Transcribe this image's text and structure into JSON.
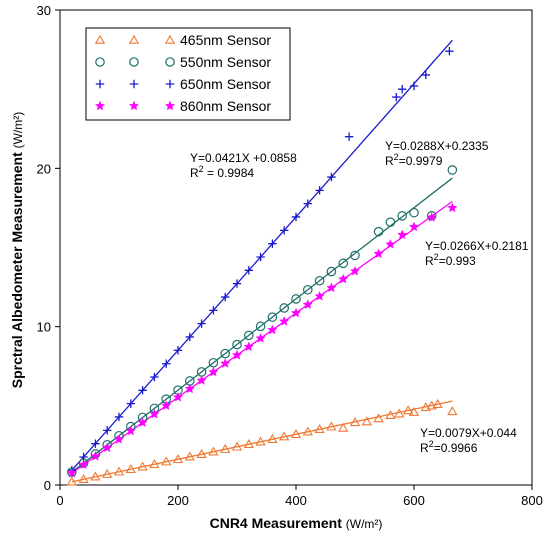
{
  "chart_data": {
    "type": "scatter",
    "title": "",
    "xlabel": "CNR4 Measurement",
    "xlabel_unit": "(W/m²)",
    "ylabel": "Sprctral Albedometer Measurement",
    "ylabel_unit": "(W/m²)",
    "xlim": [
      0,
      800
    ],
    "ylim": [
      0,
      30
    ],
    "x_ticks": [
      0,
      200,
      400,
      600,
      800
    ],
    "y_ticks": [
      0,
      10,
      20,
      30
    ],
    "grid": false,
    "legend_position": "top-left",
    "series": [
      {
        "name": "465nm Sensor",
        "marker": "triangle-open",
        "color": "#f07830",
        "x": [
          20,
          40,
          60,
          80,
          100,
          120,
          140,
          160,
          180,
          200,
          220,
          240,
          260,
          280,
          300,
          320,
          340,
          360,
          380,
          400,
          420,
          440,
          460,
          480,
          500,
          520,
          540,
          560,
          575,
          590,
          600,
          620,
          630,
          640,
          665
        ],
        "y": [
          0.2,
          0.36,
          0.52,
          0.68,
          0.83,
          0.99,
          1.15,
          1.31,
          1.47,
          1.62,
          1.78,
          1.94,
          2.1,
          2.26,
          2.41,
          2.57,
          2.73,
          2.89,
          3.05,
          3.2,
          3.36,
          3.52,
          3.68,
          3.6,
          3.95,
          4.0,
          4.2,
          4.4,
          4.5,
          4.7,
          4.6,
          4.9,
          5.0,
          5.1,
          4.65
        ]
      },
      {
        "name": "550nm Sensor",
        "marker": "circle-open",
        "color": "#1f6f6a",
        "x": [
          20,
          40,
          60,
          80,
          100,
          120,
          140,
          160,
          180,
          200,
          220,
          240,
          260,
          280,
          300,
          320,
          340,
          360,
          380,
          400,
          420,
          440,
          460,
          480,
          500,
          540,
          560,
          580,
          600,
          630,
          665
        ],
        "y": [
          0.81,
          1.39,
          1.96,
          2.54,
          3.11,
          3.69,
          4.27,
          4.84,
          5.42,
          5.99,
          6.57,
          7.14,
          7.72,
          8.3,
          8.87,
          9.45,
          10.02,
          10.6,
          11.18,
          11.75,
          12.33,
          12.9,
          13.48,
          14.0,
          14.5,
          16.0,
          16.6,
          17.0,
          17.2,
          17.0,
          19.9
        ]
      },
      {
        "name": "650nm Sensor",
        "marker": "plus",
        "color": "#1a1acd",
        "x": [
          20,
          40,
          60,
          80,
          100,
          120,
          140,
          160,
          180,
          200,
          220,
          240,
          260,
          280,
          300,
          320,
          340,
          360,
          380,
          400,
          420,
          440,
          460,
          490,
          570,
          580,
          600,
          620,
          660
        ],
        "y": [
          0.93,
          1.77,
          2.61,
          3.45,
          4.3,
          5.14,
          5.98,
          6.82,
          7.66,
          8.51,
          9.35,
          10.19,
          11.03,
          11.87,
          12.72,
          13.56,
          14.4,
          15.24,
          16.08,
          16.93,
          17.77,
          18.61,
          19.45,
          22.0,
          24.5,
          25.0,
          25.2,
          25.9,
          27.4
        ]
      },
      {
        "name": "860nm Sensor",
        "marker": "star",
        "color": "#ff00ff",
        "x": [
          20,
          40,
          60,
          80,
          100,
          120,
          140,
          160,
          180,
          200,
          220,
          240,
          260,
          280,
          300,
          320,
          340,
          360,
          380,
          400,
          420,
          440,
          460,
          480,
          500,
          540,
          560,
          580,
          600,
          630,
          665
        ],
        "y": [
          0.75,
          1.28,
          1.81,
          2.35,
          2.88,
          3.41,
          3.94,
          4.47,
          5.01,
          5.54,
          6.07,
          6.6,
          7.13,
          7.67,
          8.2,
          8.73,
          9.26,
          9.79,
          10.33,
          10.86,
          11.39,
          11.92,
          12.45,
          13.0,
          13.5,
          14.6,
          15.2,
          15.8,
          16.3,
          16.9,
          17.5
        ]
      }
    ],
    "fit_lines": [
      {
        "series": "465nm Sensor",
        "slope": 0.0079,
        "intercept": 0.044,
        "x_range": [
          20,
          665
        ]
      },
      {
        "series": "550nm Sensor",
        "slope": 0.0288,
        "intercept": 0.2335,
        "x_range": [
          20,
          665
        ]
      },
      {
        "series": "650nm Sensor",
        "slope": 0.0421,
        "intercept": 0.0858,
        "x_range": [
          20,
          665
        ]
      },
      {
        "series": "860nm Sensor",
        "slope": 0.0266,
        "intercept": 0.2181,
        "x_range": [
          20,
          665
        ]
      }
    ],
    "annotations": [
      {
        "series": "650nm Sensor",
        "equation": "Y=0.0421X +0.0858",
        "r2_prefix": "R",
        "r2_sup": "2",
        "r2_value": " = 0.9984"
      },
      {
        "series": "550nm Sensor",
        "equation": "Y=0.0288X+0.2335",
        "r2_prefix": "R",
        "r2_sup": "2",
        "r2_value": "=0.9979"
      },
      {
        "series": "860nm Sensor",
        "equation": "Y=0.0266X+0.2181",
        "r2_prefix": "R",
        "r2_sup": "2",
        "r2_value": "=0.993"
      },
      {
        "series": "465nm Sensor",
        "equation": "Y=0.0079X+0.044",
        "r2_prefix": "R",
        "r2_sup": "2",
        "r2_value": "=0.9966"
      }
    ]
  }
}
